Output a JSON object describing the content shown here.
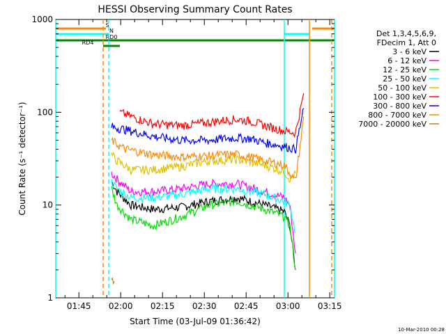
{
  "chart_data": {
    "type": "line",
    "title": "HESSI Observing Summary Count Rates",
    "xlabel": "Start Time (03-Jul-09 01:36:42)",
    "ylabel": "Count Rate (s⁻¹ detector⁻¹)",
    "y_scale": "log",
    "ylim": [
      1,
      1000
    ],
    "xlim_minutes_after_01_36_42": [
      0,
      100
    ],
    "x_ticks": [
      "01:45",
      "02:00",
      "02:15",
      "02:30",
      "02:45",
      "03:00",
      "03:15"
    ],
    "y_ticks": [
      "1",
      "10",
      "100",
      "1000"
    ],
    "legend_title": [
      "Det 1,3,4,5,6,9,",
      "FDecim 1, Att 0"
    ],
    "legend_position": "right",
    "grid": false,
    "series": [
      {
        "name": "3 - 6 keV",
        "color": "#000000",
        "x": [
          20,
          22,
          27,
          35,
          45,
          55,
          65,
          75,
          82,
          84,
          86
        ],
        "y": [
          18,
          14,
          10,
          9,
          9.5,
          11,
          12,
          10,
          8.5,
          6,
          2
        ]
      },
      {
        "name": "6 - 12 keV",
        "color": "#ff00ff",
        "x": [
          20,
          22,
          27,
          35,
          45,
          55,
          65,
          75,
          82,
          84,
          86
        ],
        "y": [
          22,
          19,
          14,
          14,
          15,
          17,
          17,
          14,
          12,
          10,
          3
        ]
      },
      {
        "name": "12 - 25 keV",
        "color": "#00dd00",
        "x": [
          20,
          22,
          27,
          35,
          45,
          55,
          65,
          75,
          82,
          84,
          86
        ],
        "y": [
          15,
          10,
          7,
          6,
          7.5,
          10,
          11,
          9,
          7.5,
          6,
          2
        ]
      },
      {
        "name": "25 - 50 keV",
        "color": "#00ffff",
        "x": [
          20,
          22,
          27,
          35,
          45,
          55,
          65,
          75,
          82,
          84,
          86
        ],
        "y": [
          18,
          15,
          12,
          12,
          13,
          15,
          15,
          13,
          11,
          10,
          5
        ]
      },
      {
        "name": "50 - 100 keV",
        "color": "#e0c000",
        "x": [
          20,
          22,
          27,
          35,
          45,
          55,
          65,
          75,
          82,
          84,
          86
        ],
        "y": [
          35,
          30,
          24,
          24,
          26,
          30,
          31,
          27,
          23,
          19,
          22
        ]
      },
      {
        "name": "100 - 300 keV",
        "color": "#ff0000",
        "x": [
          23,
          27,
          35,
          45,
          55,
          60,
          65,
          70,
          75,
          82,
          86,
          89
        ],
        "y": [
          100,
          90,
          75,
          72,
          78,
          82,
          84,
          80,
          72,
          63,
          60,
          160
        ]
      },
      {
        "name": "300 - 800 keV",
        "color": "#0000ee",
        "x": [
          20,
          25,
          35,
          45,
          55,
          60,
          65,
          70,
          75,
          82,
          86,
          89
        ],
        "y": [
          70,
          65,
          55,
          50,
          50,
          52,
          53,
          52,
          47,
          43,
          40,
          110
        ]
      },
      {
        "name": "800 - 7000 keV",
        "color": "#ff8800",
        "x": [
          20,
          23,
          25,
          35,
          45,
          55,
          60,
          65,
          70,
          75,
          82,
          86,
          89
        ],
        "y": [
          50,
          43,
          40,
          35,
          33,
          34,
          35,
          35,
          33,
          30,
          27,
          18,
          90
        ]
      },
      {
        "name": "7000 - 20000 keV",
        "color": "#b8860b",
        "x": [
          20,
          21
        ],
        "y": [
          1.6,
          1.5
        ]
      }
    ],
    "state_bars": [
      {
        "label": "S",
        "color": "#ff8800",
        "segments": [
          [
            0,
            18
          ],
          [
            92,
            100
          ]
        ]
      },
      {
        "label": "N",
        "color": "#00ffff",
        "segments": [
          [
            0,
            19
          ],
          [
            82,
            91
          ]
        ]
      },
      {
        "label": "RD0",
        "color": "#008800",
        "segments": [
          [
            0,
            100
          ]
        ]
      },
      {
        "label": "RD4",
        "color": "#008800",
        "segments": [
          [
            17,
            23
          ]
        ]
      }
    ],
    "vertical_markers": [
      {
        "x": 0,
        "color": "#00ffff",
        "style": "solid"
      },
      {
        "x": 17,
        "color": "#ff8800",
        "style": "dashed"
      },
      {
        "x": 19,
        "color": "#00ffff",
        "style": "dashed"
      },
      {
        "x": 82,
        "color": "#00ffff",
        "style": "solid"
      },
      {
        "x": 91,
        "color": "#ff8800",
        "style": "solid"
      },
      {
        "x": 99,
        "color": "#ff8800",
        "style": "dashed"
      },
      {
        "x": 100,
        "color": "#00ffff",
        "style": "solid"
      }
    ],
    "footer_date": "10-Mar-2010 00:28"
  }
}
